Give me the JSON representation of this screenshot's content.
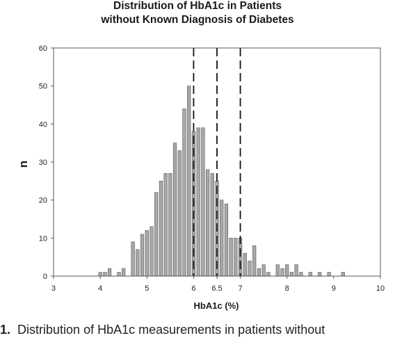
{
  "chart_data": {
    "type": "bar",
    "title": "Distribution of HbA1c in Patients",
    "subtitle": "without Known Diagnosis of Diabetes",
    "xlabel": "HbA1c (%)",
    "ylabel": "n",
    "xlim": [
      3,
      10
    ],
    "ylim": [
      0,
      60
    ],
    "x_ticks": [
      "3",
      "4",
      "5",
      "6",
      "6.5",
      "7",
      "8",
      "9",
      "10"
    ],
    "x_tick_values": [
      3,
      4,
      5,
      6,
      6.5,
      7,
      8,
      9,
      10
    ],
    "y_ticks": [
      "0",
      "10",
      "20",
      "30",
      "40",
      "50",
      "60"
    ],
    "y_tick_values": [
      0,
      10,
      20,
      30,
      40,
      50,
      60
    ],
    "grid": false,
    "bar_color": "#a8a8a8",
    "reference_lines": [
      6,
      6.5,
      7
    ],
    "x": [
      4.0,
      4.1,
      4.2,
      4.4,
      4.5,
      4.7,
      4.8,
      4.9,
      5.0,
      5.1,
      5.2,
      5.3,
      5.4,
      5.5,
      5.6,
      5.7,
      5.8,
      5.9,
      6.0,
      6.1,
      6.2,
      6.3,
      6.4,
      6.5,
      6.6,
      6.7,
      6.8,
      6.9,
      7.0,
      7.1,
      7.2,
      7.3,
      7.4,
      7.5,
      7.6,
      7.8,
      7.9,
      8.0,
      8.1,
      8.2,
      8.3,
      8.5,
      8.7,
      8.9,
      9.2
    ],
    "values": [
      1,
      1,
      2,
      1,
      2,
      9,
      7,
      11,
      12,
      13,
      22,
      25,
      27,
      27,
      35,
      33,
      44,
      50,
      38,
      39,
      39,
      28,
      27,
      25,
      20,
      19,
      10,
      10,
      10,
      6,
      4,
      8,
      2,
      3,
      1,
      3,
      2,
      3,
      1,
      3,
      1,
      1,
      1,
      1,
      1
    ]
  },
  "caption": {
    "number": "1.",
    "text": "Distribution of HbA1c measurements in patients without"
  }
}
